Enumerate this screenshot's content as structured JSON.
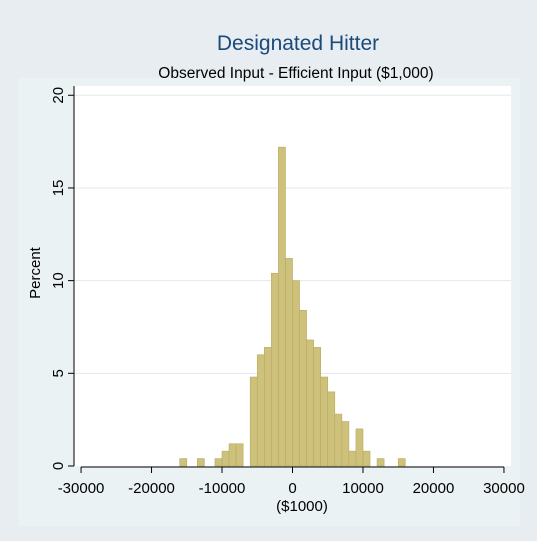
{
  "chart_data": {
    "type": "bar",
    "title": "Designated Hitter",
    "subtitle": "Observed Input - Efficient Input ($1,000)",
    "xlabel": "($1000)",
    "ylabel": "Percent",
    "xlim": [
      -31000,
      31000
    ],
    "ylim": [
      0,
      20.5
    ],
    "xticks": [
      -30000,
      -20000,
      -10000,
      0,
      10000,
      20000,
      30000
    ],
    "yticks": [
      0,
      5,
      10,
      15,
      20
    ],
    "grid": true,
    "bin_width": 1000,
    "bar_color": "#cdc17b",
    "bar_edge_color": "#b8ab60",
    "bins": [
      {
        "x": -16000,
        "value": 0.4
      },
      {
        "x": -13500,
        "value": 0.4
      },
      {
        "x": -11000,
        "value": 0.4
      },
      {
        "x": -10000,
        "value": 0.8
      },
      {
        "x": -9000,
        "value": 1.2
      },
      {
        "x": -8000,
        "value": 1.2
      },
      {
        "x": -6000,
        "value": 4.8
      },
      {
        "x": -5000,
        "value": 6.0
      },
      {
        "x": -4000,
        "value": 6.4
      },
      {
        "x": -3000,
        "value": 10.4
      },
      {
        "x": -2000,
        "value": 17.2
      },
      {
        "x": -1000,
        "value": 11.2
      },
      {
        "x": 0,
        "value": 10.0
      },
      {
        "x": 1000,
        "value": 8.4
      },
      {
        "x": 2000,
        "value": 6.8
      },
      {
        "x": 3000,
        "value": 6.4
      },
      {
        "x": 4000,
        "value": 4.8
      },
      {
        "x": 5000,
        "value": 4.0
      },
      {
        "x": 6000,
        "value": 2.8
      },
      {
        "x": 7000,
        "value": 2.4
      },
      {
        "x": 8000,
        "value": 0.8
      },
      {
        "x": 9000,
        "value": 2.0
      },
      {
        "x": 10000,
        "value": 0.8
      },
      {
        "x": 12000,
        "value": 0.4
      },
      {
        "x": 15000,
        "value": 0.4
      }
    ]
  }
}
